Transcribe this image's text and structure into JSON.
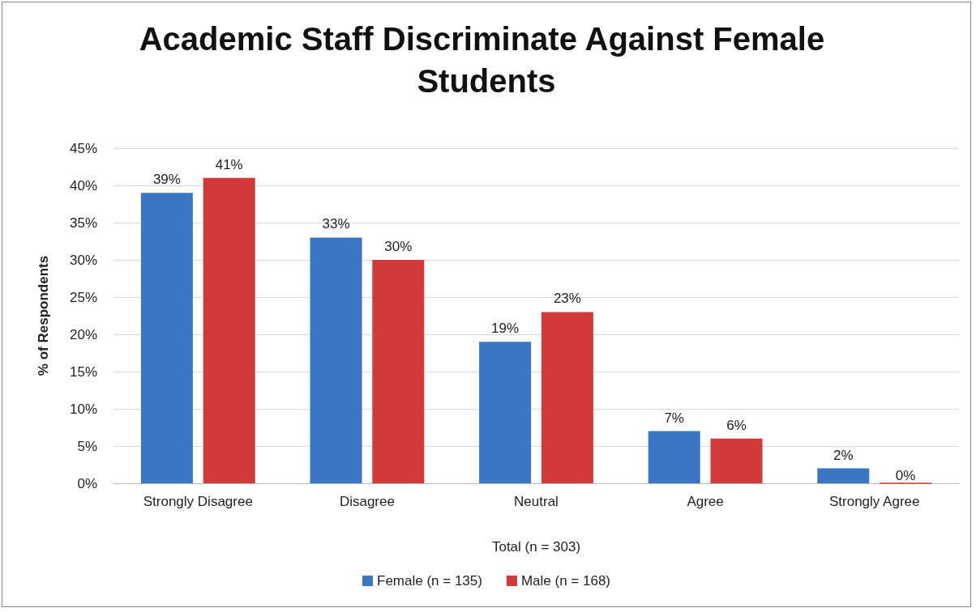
{
  "chart_data": {
    "type": "bar",
    "title": "Academic Staff Discriminate Against Female Students",
    "xlabel": "Total (n = 303)",
    "ylabel": "% of Respondents",
    "categories": [
      "Strongly Disagree",
      "Disagree",
      "Neutral",
      "Agree",
      "Strongly Agree"
    ],
    "series": [
      {
        "name": "Female (n = 135)",
        "color": "#3b76c4",
        "values": [
          39,
          33,
          19,
          7,
          2
        ],
        "value_labels": [
          "39%",
          "33%",
          "19%",
          "7%",
          "2%"
        ]
      },
      {
        "name": "Male (n = 168)",
        "color": "#d23a3a",
        "values": [
          41,
          30,
          23,
          6,
          0
        ],
        "value_labels": [
          "41%",
          "30%",
          "23%",
          "6%",
          "0%"
        ]
      }
    ],
    "ylim": [
      0,
      45
    ],
    "yticks": [
      {
        "value": 0,
        "label": "0%"
      },
      {
        "value": 5,
        "label": "5%"
      },
      {
        "value": 10,
        "label": "10%"
      },
      {
        "value": 15,
        "label": "15%"
      },
      {
        "value": 20,
        "label": "20%"
      },
      {
        "value": 25,
        "label": "25%"
      },
      {
        "value": 30,
        "label": "30%"
      },
      {
        "value": 35,
        "label": "35%"
      },
      {
        "value": 40,
        "label": "40%"
      },
      {
        "value": 45,
        "label": "45%"
      }
    ],
    "grid": "y",
    "legend": "bottom"
  }
}
